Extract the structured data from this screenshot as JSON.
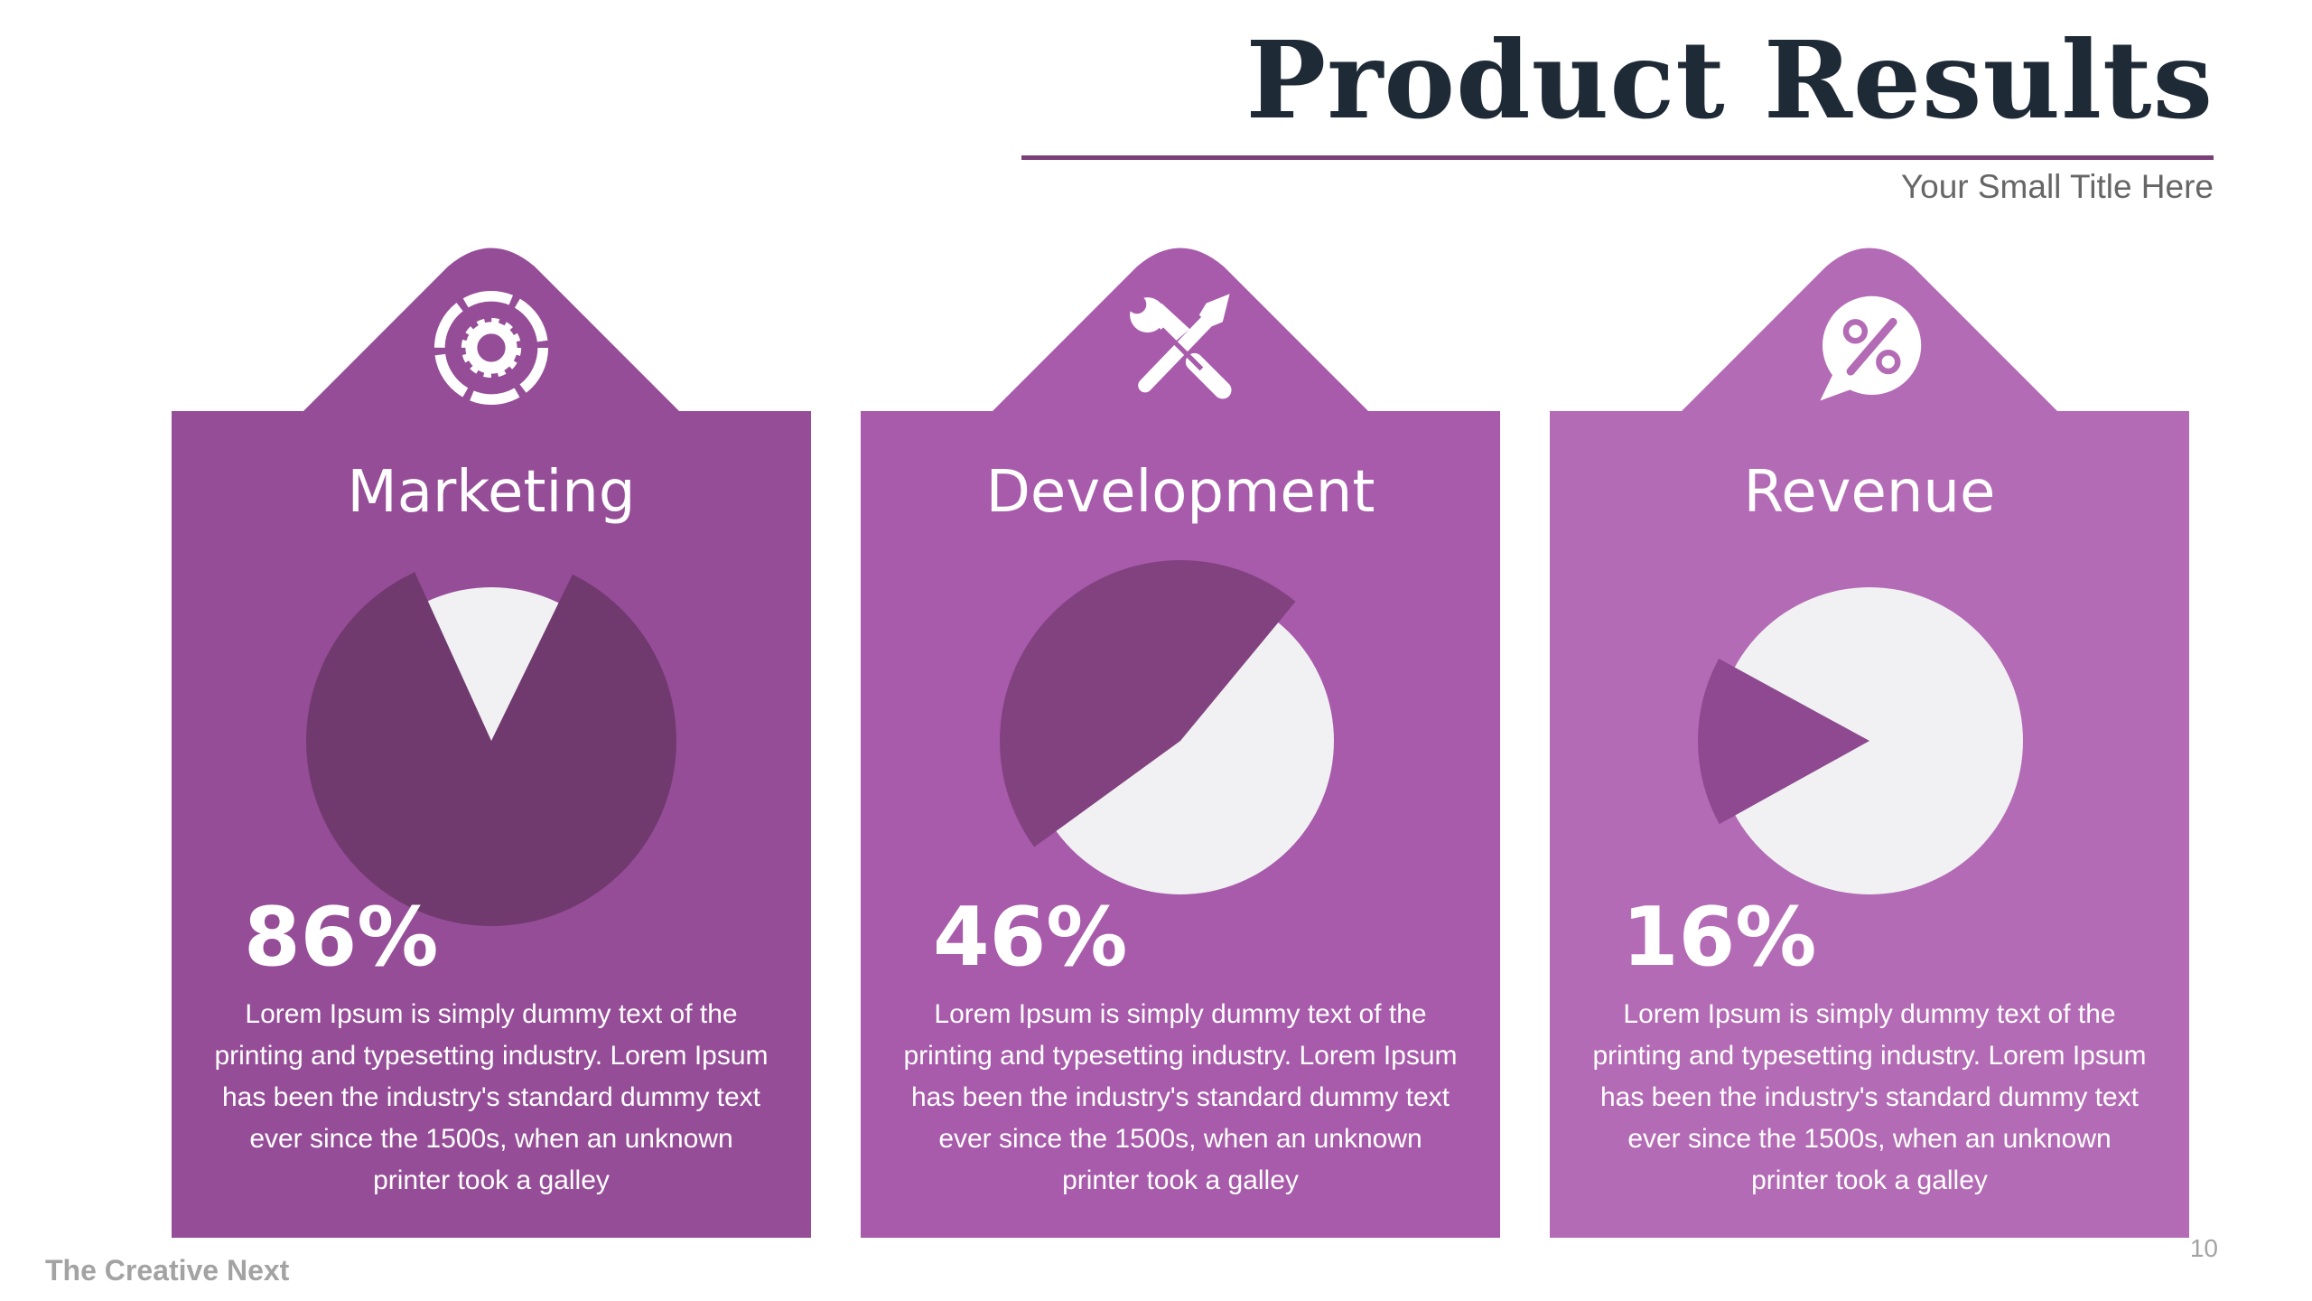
{
  "header": {
    "title": "Product Results",
    "subtitle": "Your Small Title Here"
  },
  "footer": {
    "brand": "The Creative Next",
    "page_number": "10"
  },
  "colors": {
    "title": "#1f2a37",
    "rule": "#7a3f77",
    "pie_light": "#f1f1f3"
  },
  "cards": [
    {
      "title": "Marketing",
      "icon": "gear-icon",
      "percent_label": "86%",
      "color": "#964d98",
      "slice_color": "#703a6f",
      "description": "Lorem Ipsum is simply dummy text of the printing and typesetting industry. Lorem Ipsum has been the industry's standard dummy text ever since the 1500s, when an unknown printer took a galley"
    },
    {
      "title": "Development",
      "icon": "tools-icon",
      "percent_label": "46%",
      "color": "#a85aab",
      "slice_color": "#82427f",
      "description": "Lorem Ipsum is simply dummy text of the printing and typesetting industry. Lorem Ipsum has been the industry's standard dummy text ever since the 1500s, when an unknown printer took a galley"
    },
    {
      "title": "Revenue",
      "icon": "percent-chat-icon",
      "percent_label": "16%",
      "color": "#b46bb5",
      "slice_color": "#8e4990",
      "description": "Lorem Ipsum is simply dummy text of the printing and typesetting industry. Lorem Ipsum has been the industry's standard dummy text ever since the 1500s, when an unknown printer took a galley"
    }
  ],
  "chart_data": [
    {
      "type": "pie",
      "title": "Marketing",
      "values": [
        86,
        14
      ]
    },
    {
      "type": "pie",
      "title": "Development",
      "values": [
        46,
        54
      ]
    },
    {
      "type": "pie",
      "title": "Revenue",
      "values": [
        16,
        84
      ]
    }
  ]
}
